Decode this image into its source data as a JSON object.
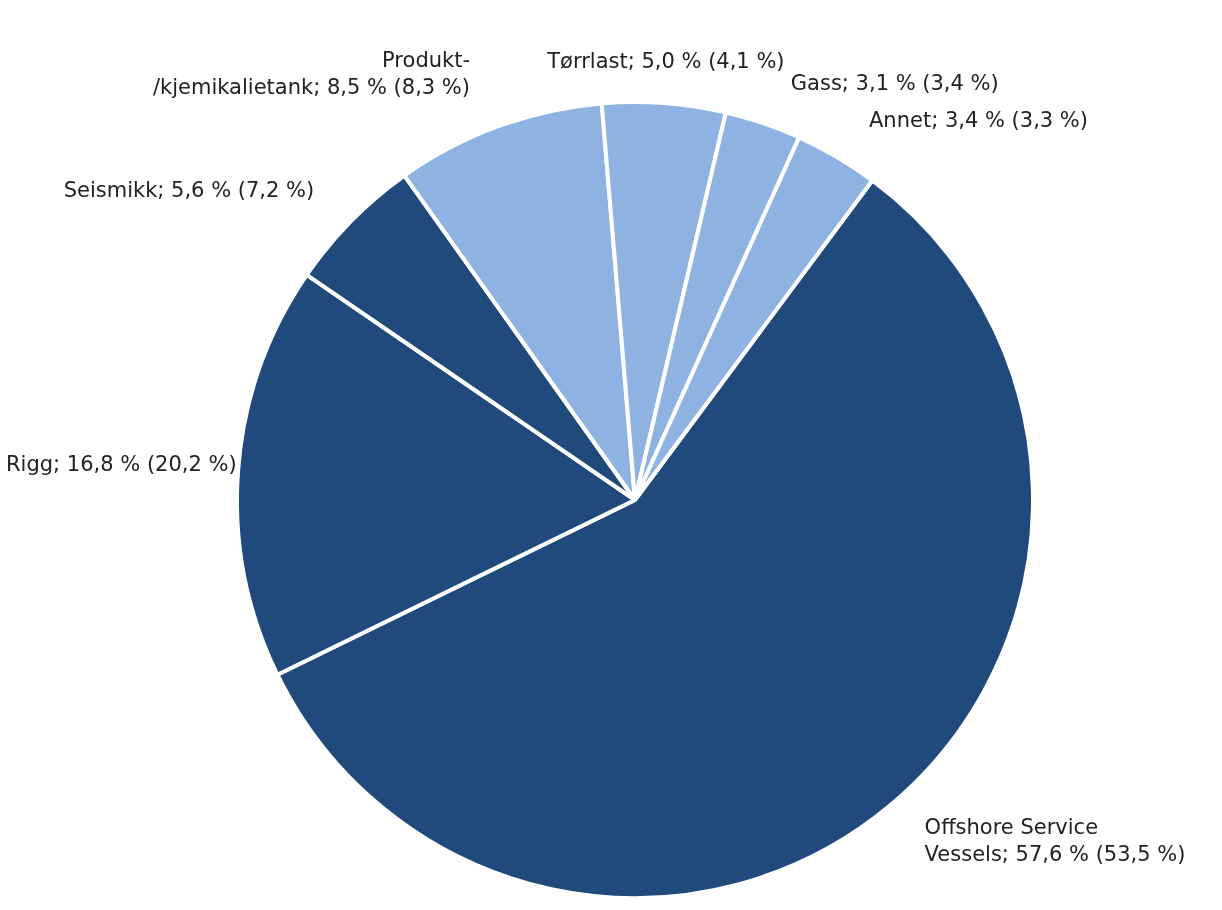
{
  "chart_data": {
    "type": "pie",
    "categories": [
      "Offshore Service Vessels",
      "Rigg",
      "Seismikk",
      "Produkt-/kjemikalietank",
      "Tørrlast",
      "Gass",
      "Annet"
    ],
    "values": [
      57.6,
      16.8,
      5.6,
      8.5,
      5.0,
      3.1,
      3.4
    ],
    "value_labels": [
      "57,6 % (53,5 %)",
      "16,8 % (20,2 %)",
      "5,6 % (7,2 %)",
      "8,5 % (8,3 %)",
      "5,0 % (4,1 %)",
      "3,1 % (3,4 %)",
      "3,4 % (3,3 %)"
    ],
    "colors": [
      "#204a7c",
      "#204a7c",
      "#204a7c",
      "#8eb3e2",
      "#8eb3e2",
      "#8eb3e2",
      "#8eb3e2"
    ]
  }
}
